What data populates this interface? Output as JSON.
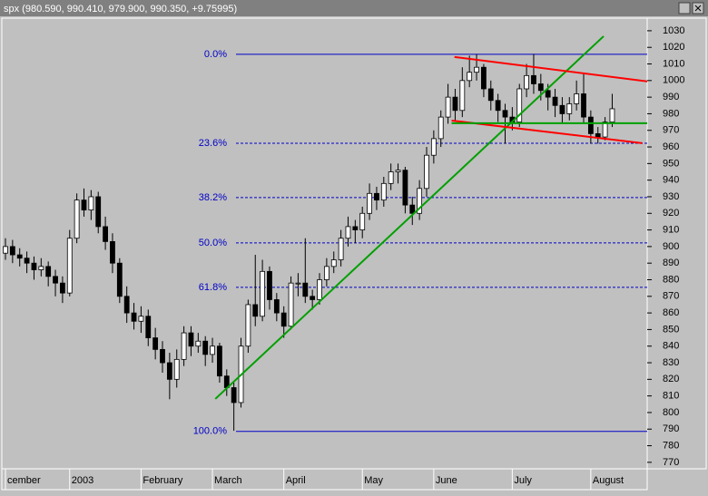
{
  "window_title": "spx (980.590, 990.410, 979.900, 990.350, +9.75995)",
  "chart_data": {
    "type": "candlestick",
    "categories": [
      "cember",
      null,
      null,
      null,
      null,
      null,
      null,
      null,
      null,
      "2003",
      null,
      null,
      null,
      null,
      null,
      null,
      null,
      null,
      null,
      "February",
      null,
      null,
      null,
      null,
      null,
      null,
      null,
      null,
      null,
      "March",
      null,
      null,
      null,
      null,
      null,
      null,
      null,
      null,
      null,
      "April",
      null,
      null,
      null,
      null,
      null,
      null,
      null,
      null,
      null,
      null,
      "May",
      null,
      null,
      null,
      null,
      null,
      null,
      null,
      null,
      null,
      "June",
      null,
      null,
      null,
      null,
      null,
      null,
      null,
      null,
      null,
      null,
      "July",
      null,
      null,
      null,
      null,
      null,
      null,
      null,
      null,
      null,
      null,
      "August",
      null,
      null,
      null
    ],
    "open": [
      896,
      900,
      895,
      893,
      890,
      886,
      888,
      882,
      878,
      872,
      905,
      928,
      922,
      930,
      912,
      903,
      890,
      870,
      860,
      855,
      858,
      845,
      838,
      830,
      820,
      832,
      848,
      840,
      843,
      835,
      840,
      822,
      815,
      806,
      840,
      865,
      858,
      885,
      868,
      860,
      852,
      878,
      878,
      870,
      868,
      880,
      888,
      892,
      905,
      912,
      910,
      920,
      932,
      928,
      938,
      945,
      946,
      925,
      920,
      935,
      955,
      965,
      978,
      990,
      982,
      1000,
      1005,
      1008,
      995,
      988,
      982,
      978,
      975,
      995,
      1003,
      998,
      994,
      990,
      985,
      980,
      986,
      992,
      978,
      968,
      966,
      975
    ],
    "high": [
      905,
      904,
      899,
      897,
      894,
      893,
      891,
      886,
      882,
      910,
      932,
      935,
      934,
      933,
      918,
      908,
      893,
      876,
      866,
      864,
      862,
      851,
      843,
      836,
      838,
      852,
      852,
      848,
      846,
      845,
      842,
      826,
      818,
      845,
      868,
      895,
      892,
      888,
      872,
      864,
      882,
      884,
      905,
      874,
      884,
      893,
      897,
      910,
      918,
      916,
      924,
      938,
      936,
      942,
      950,
      950,
      948,
      930,
      940,
      960,
      970,
      982,
      998,
      995,
      1008,
      1015,
      1016,
      1010,
      1000,
      992,
      986,
      984,
      998,
      1010,
      1016,
      1004,
      998,
      995,
      990,
      990,
      1000,
      1004,
      982,
      972,
      978,
      992
    ],
    "low": [
      892,
      890,
      888,
      884,
      880,
      882,
      876,
      870,
      866,
      870,
      902,
      918,
      916,
      908,
      898,
      884,
      866,
      854,
      850,
      848,
      840,
      832,
      824,
      808,
      815,
      828,
      834,
      836,
      828,
      830,
      818,
      810,
      789,
      803,
      836,
      852,
      855,
      862,
      855,
      845,
      850,
      870,
      866,
      862,
      865,
      876,
      884,
      888,
      900,
      902,
      905,
      916,
      922,
      924,
      934,
      938,
      920,
      913,
      916,
      930,
      950,
      960,
      974,
      976,
      978,
      996,
      1000,
      990,
      982,
      975,
      962,
      970,
      972,
      990,
      992,
      988,
      982,
      978,
      974,
      976,
      982,
      974,
      962,
      962,
      964,
      972
    ],
    "close": [
      900,
      895,
      893,
      890,
      886,
      888,
      882,
      878,
      872,
      905,
      928,
      922,
      930,
      912,
      903,
      890,
      870,
      860,
      855,
      858,
      845,
      838,
      830,
      820,
      832,
      848,
      840,
      843,
      835,
      840,
      822,
      815,
      806,
      840,
      865,
      858,
      885,
      868,
      860,
      852,
      878,
      878,
      870,
      868,
      880,
      888,
      892,
      905,
      912,
      910,
      920,
      932,
      928,
      938,
      945,
      946,
      925,
      920,
      935,
      955,
      965,
      978,
      990,
      982,
      1000,
      1005,
      1008,
      995,
      988,
      982,
      978,
      975,
      995,
      1003,
      998,
      994,
      990,
      985,
      980,
      986,
      992,
      978,
      968,
      966,
      975,
      983
    ],
    "up_color": "#ffffff",
    "down_color": "#000000",
    "xlim": [
      -0.38,
      89.9
    ],
    "ylim": [
      766.1,
      1037.6
    ],
    "yticks": [
      770,
      780,
      790,
      800,
      810,
      820,
      830,
      840,
      850,
      860,
      870,
      880,
      890,
      900,
      910,
      920,
      930,
      940,
      950,
      960,
      970,
      980,
      990,
      1000,
      1010,
      1020,
      1030
    ],
    "fib_levels": [
      {
        "label": "0.0%",
        "value": 1015.8,
        "style": "solid"
      },
      {
        "label": "23.6%",
        "value": 962.2,
        "style": "dashed"
      },
      {
        "label": "38.2%",
        "value": 929.5,
        "style": "dashed"
      },
      {
        "label": "50.0%",
        "value": 902.2,
        "style": "dashed"
      },
      {
        "label": "61.8%",
        "value": 875.4,
        "style": "dashed"
      },
      {
        "label": "100.0%",
        "value": 788.6,
        "style": "solid"
      }
    ],
    "fib_start_x": 32.3,
    "fib_color": "#0000c8",
    "trendlines": [
      {
        "color": "#00a000",
        "x": [
          29.4,
          83.8
        ],
        "y": [
          808.2,
          1026.7
        ]
      },
      {
        "color": "#ff0000",
        "x": [
          62.9,
          90.1
        ],
        "y": [
          1014.2,
          999.4
        ]
      },
      {
        "color": "#ff0000",
        "x": [
          62.5,
          89.2
        ],
        "y": [
          975.9,
          962.3
        ]
      },
      {
        "color": "#00a000",
        "x": [
          62.5,
          98
        ],
        "y": [
          974.3,
          974.3
        ]
      }
    ]
  }
}
